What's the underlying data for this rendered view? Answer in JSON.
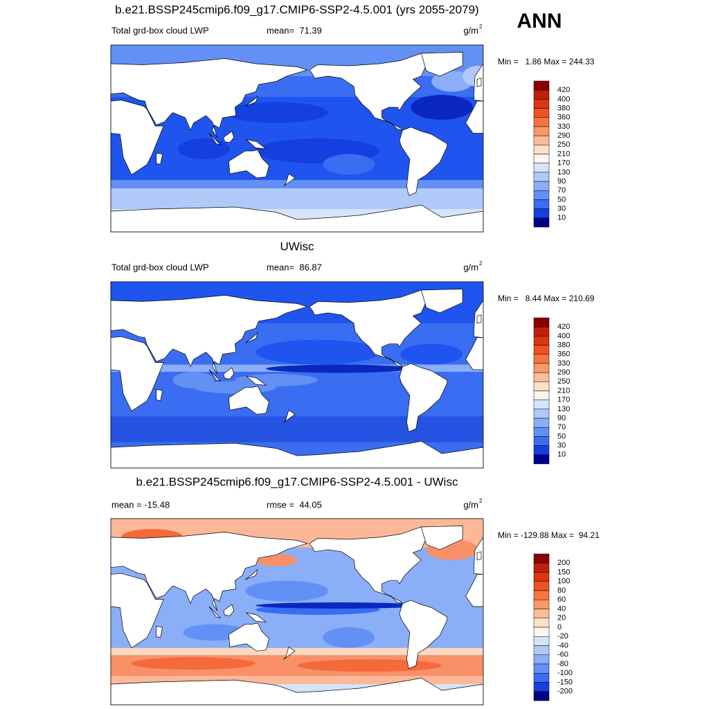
{
  "title": "ANN",
  "panels": [
    {
      "title": "b.e21.BSSP245cmip6.f09_g17.CMIP6-SSP2-4.5.001 (yrs 2055-2079)",
      "left_label": "Total grd-box cloud LWP",
      "center_label": "mean=  71.39",
      "units": "g/m",
      "units_superscript": "2",
      "min_max": "Min =   1.86 Max = 244.33",
      "colorbar": {
        "labels": [
          420,
          400,
          380,
          360,
          330,
          290,
          250,
          210,
          170,
          130,
          90,
          70,
          50,
          30,
          10
        ],
        "colors": [
          "#8b0000",
          "#c0200a",
          "#dc3510",
          "#ee5220",
          "#f7743f",
          "#fb9869",
          "#fcbc98",
          "#fde0c8",
          "#fdf5ec",
          "#d6e4fb",
          "#b0c9f9",
          "#8aaef7",
          "#6390f5",
          "#3a6df2",
          "#1540e0",
          "#00008a"
        ]
      }
    },
    {
      "title": "UWisc",
      "left_label": "Total grd-box cloud LWP",
      "center_label": "mean=  86.87",
      "units": "g/m",
      "units_superscript": "2",
      "min_max": "Min =   8.44 Max = 210.69",
      "colorbar": {
        "labels": [
          420,
          400,
          380,
          360,
          330,
          290,
          250,
          210,
          170,
          130,
          90,
          70,
          50,
          30,
          10
        ],
        "colors": [
          "#8b0000",
          "#c0200a",
          "#dc3510",
          "#ee5220",
          "#f7743f",
          "#fb9869",
          "#fcbc98",
          "#fde0c8",
          "#fdf5ec",
          "#d6e4fb",
          "#b0c9f9",
          "#8aaef7",
          "#6390f5",
          "#3a6df2",
          "#1540e0",
          "#00008a"
        ]
      }
    },
    {
      "title": "b.e21.BSSP245cmip6.f09_g17.CMIP6-SSP2-4.5.001 - UWisc",
      "left_label": "mean = -15.48",
      "center_label": "rmse =  44.05",
      "units": "g/m",
      "units_superscript": "2",
      "min_max": "Min = -129.88 Max =  94.21",
      "colorbar": {
        "labels": [
          200,
          150,
          100,
          80,
          60,
          40,
          20,
          0,
          -20,
          -40,
          -60,
          -80,
          -100,
          -150,
          -200
        ],
        "colors": [
          "#8b0000",
          "#c0200a",
          "#dc3510",
          "#ee5220",
          "#f7743f",
          "#fb9869",
          "#fcbc98",
          "#fde0c8",
          "#fdf5ec",
          "#d6e4fb",
          "#b0c9f9",
          "#8aaef7",
          "#6390f5",
          "#3a6df2",
          "#1540e0",
          "#00008a"
        ]
      }
    }
  ]
}
